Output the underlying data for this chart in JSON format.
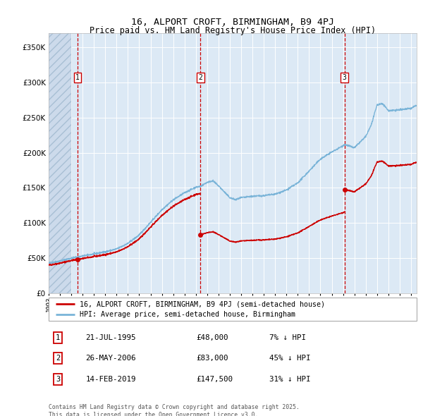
{
  "title1": "16, ALPORT CROFT, BIRMINGHAM, B9 4PJ",
  "title2": "Price paid vs. HM Land Registry's House Price Index (HPI)",
  "background_color": "#dce9f5",
  "plot_bg_color": "#dce9f5",
  "grid_color": "#ffffff",
  "red_line_color": "#cc0000",
  "blue_line_color": "#7ab4d8",
  "sale_marker_color": "#cc0000",
  "dashed_line_color": "#cc0000",
  "ylim": [
    0,
    370000
  ],
  "yticks": [
    0,
    50000,
    100000,
    150000,
    200000,
    250000,
    300000,
    350000
  ],
  "ytick_labels": [
    "£0",
    "£50K",
    "£100K",
    "£150K",
    "£200K",
    "£250K",
    "£300K",
    "£350K"
  ],
  "hpi_anchors_t": [
    1993,
    1994,
    1995,
    1995.5,
    1996,
    1997,
    1998,
    1999,
    2000,
    2001,
    2002,
    2003,
    2004,
    2005,
    2006,
    2006.4,
    2007,
    2007.5,
    2008,
    2009,
    2009.5,
    2010,
    2011,
    2012,
    2013,
    2014,
    2015,
    2016,
    2017,
    2018,
    2019,
    2019.1,
    2020,
    2021,
    2021.5,
    2022,
    2022.5,
    2023,
    2024,
    2025,
    2025.4
  ],
  "hpi_anchors_v": [
    43000,
    46000,
    50000,
    51500,
    53000,
    56000,
    59000,
    63000,
    71000,
    83000,
    101000,
    119000,
    133000,
    143000,
    151000,
    152000,
    158000,
    160000,
    153000,
    136000,
    133000,
    136000,
    138000,
    139000,
    141000,
    147000,
    157000,
    174000,
    191000,
    201000,
    210000,
    212000,
    207000,
    223000,
    240000,
    268000,
    270000,
    260000,
    261000,
    263000,
    267000
  ],
  "s1_t": 1995.55,
  "s1_p": 48000,
  "s2_t": 2006.4,
  "s2_p": 83000,
  "s3_t": 2019.12,
  "s3_p": 147500,
  "xmin": 1993.0,
  "xmax": 2025.5,
  "hatch_end": 1995.0,
  "sale_annotations": [
    {
      "num": "1",
      "date": "21-JUL-1995",
      "price": "£48,000",
      "pct": "7% ↓ HPI"
    },
    {
      "num": "2",
      "date": "26-MAY-2006",
      "price": "£83,000",
      "pct": "45% ↓ HPI"
    },
    {
      "num": "3",
      "date": "14-FEB-2019",
      "price": "£147,500",
      "pct": "31% ↓ HPI"
    }
  ],
  "legend_line1": "16, ALPORT CROFT, BIRMINGHAM, B9 4PJ (semi-detached house)",
  "legend_line2": "HPI: Average price, semi-detached house, Birmingham",
  "footer": "Contains HM Land Registry data © Crown copyright and database right 2025.\nThis data is licensed under the Open Government Licence v3.0."
}
